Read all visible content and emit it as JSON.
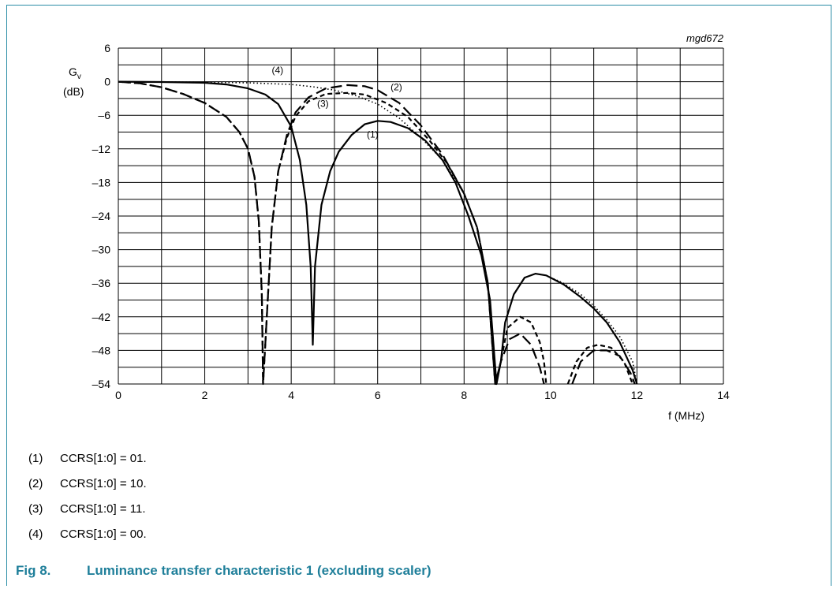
{
  "chart_data": {
    "type": "line",
    "id_label": "mgd672",
    "ylabel_main": "G",
    "ylabel_sub": "v",
    "ylabel_unit": "(dB)",
    "xlabel": "f (MHz)",
    "xlim": [
      0,
      14
    ],
    "ylim": [
      -54,
      6
    ],
    "x_ticks": [
      0,
      2,
      4,
      6,
      8,
      10,
      12,
      14
    ],
    "y_ticks": [
      6,
      0,
      -6,
      -12,
      -18,
      -24,
      -30,
      -36,
      -42,
      -48,
      -54
    ],
    "y_tick_labels": [
      "6",
      "0",
      "–6",
      "–12",
      "–18",
      "–24",
      "–30",
      "–36",
      "–42",
      "–48",
      "–54"
    ],
    "grid": true,
    "series": [
      {
        "name": "(1)",
        "style": "solid",
        "label_at": [
          5.75,
          -10
        ],
        "points": [
          [
            0,
            0
          ],
          [
            1,
            -0.05
          ],
          [
            2,
            -0.2
          ],
          [
            2.5,
            -0.5
          ],
          [
            3,
            -1.2
          ],
          [
            3.4,
            -2.3
          ],
          [
            3.7,
            -4
          ],
          [
            4,
            -8
          ],
          [
            4.2,
            -14
          ],
          [
            4.35,
            -22
          ],
          [
            4.45,
            -33
          ],
          [
            4.5,
            -47
          ],
          [
            4.55,
            -33
          ],
          [
            4.7,
            -22
          ],
          [
            4.9,
            -16
          ],
          [
            5.1,
            -12.5
          ],
          [
            5.4,
            -9.5
          ],
          [
            5.7,
            -7.6
          ],
          [
            6,
            -7
          ],
          [
            6.3,
            -7.2
          ],
          [
            6.7,
            -8.3
          ],
          [
            7.1,
            -10.5
          ],
          [
            7.5,
            -14
          ],
          [
            7.8,
            -18
          ],
          [
            8.1,
            -24
          ],
          [
            8.4,
            -31
          ],
          [
            8.6,
            -39
          ],
          [
            8.75,
            -54
          ],
          [
            8.85,
            -50
          ],
          [
            8.95,
            -43
          ],
          [
            9.15,
            -38
          ],
          [
            9.4,
            -35
          ],
          [
            9.65,
            -34.3
          ],
          [
            9.9,
            -34.6
          ],
          [
            10.3,
            -36.2
          ],
          [
            10.7,
            -38.5
          ],
          [
            11,
            -40.5
          ],
          [
            11.3,
            -43
          ],
          [
            11.6,
            -46.5
          ],
          [
            11.9,
            -51.5
          ],
          [
            12,
            -54
          ]
        ]
      },
      {
        "name": "(2)",
        "style": "longdash",
        "label_at": [
          6.3,
          -1.5
        ],
        "points": [
          [
            0,
            0
          ],
          [
            0.5,
            -0.3
          ],
          [
            1,
            -1
          ],
          [
            1.5,
            -2.2
          ],
          [
            2,
            -3.8
          ],
          [
            2.5,
            -6.3
          ],
          [
            2.8,
            -9
          ],
          [
            3,
            -12
          ],
          [
            3.15,
            -17
          ],
          [
            3.25,
            -25
          ],
          [
            3.32,
            -38
          ],
          [
            3.35,
            -54
          ],
          [
            3.45,
            -40
          ],
          [
            3.55,
            -26
          ],
          [
            3.7,
            -16
          ],
          [
            3.9,
            -9.5
          ],
          [
            4.1,
            -5.5
          ],
          [
            4.4,
            -2.8
          ],
          [
            4.8,
            -1.2
          ],
          [
            5.3,
            -0.6
          ],
          [
            5.7,
            -0.8
          ],
          [
            6,
            -1.5
          ],
          [
            6.5,
            -3.8
          ],
          [
            7,
            -7.8
          ],
          [
            7.5,
            -13
          ],
          [
            8,
            -20
          ],
          [
            8.3,
            -26
          ],
          [
            8.55,
            -36
          ],
          [
            8.72,
            -54
          ],
          [
            8.85,
            -50
          ],
          [
            9.05,
            -46
          ],
          [
            9.3,
            -45
          ],
          [
            9.55,
            -47
          ],
          [
            9.75,
            -51
          ],
          [
            9.85,
            -54
          ]
        ]
      },
      {
        "name": "(2)b",
        "style": "longdash",
        "points": [
          [
            10.5,
            -54
          ],
          [
            10.7,
            -50
          ],
          [
            11,
            -48
          ],
          [
            11.3,
            -48
          ],
          [
            11.6,
            -49
          ],
          [
            11.85,
            -52
          ],
          [
            11.95,
            -54
          ]
        ]
      },
      {
        "name": "(3)",
        "style": "shortdash",
        "label_at": [
          4.6,
          -4.5
        ],
        "points": [
          [
            0,
            0
          ],
          [
            0.5,
            -0.3
          ],
          [
            1,
            -1
          ],
          [
            1.5,
            -2.2
          ],
          [
            2,
            -3.8
          ],
          [
            2.5,
            -6.3
          ],
          [
            2.8,
            -9
          ],
          [
            3,
            -12
          ],
          [
            3.15,
            -17
          ],
          [
            3.25,
            -25
          ],
          [
            3.32,
            -38
          ],
          [
            3.35,
            -54
          ],
          [
            3.45,
            -40
          ],
          [
            3.55,
            -26
          ],
          [
            3.7,
            -16
          ],
          [
            3.9,
            -10
          ],
          [
            4.1,
            -6.2
          ],
          [
            4.4,
            -3.5
          ],
          [
            4.8,
            -2.2
          ],
          [
            5.3,
            -2
          ],
          [
            5.7,
            -2.3
          ],
          [
            6.2,
            -3.8
          ],
          [
            6.7,
            -6.3
          ],
          [
            7.2,
            -10.5
          ],
          [
            7.6,
            -14.5
          ],
          [
            8,
            -20
          ],
          [
            8.3,
            -26
          ],
          [
            8.55,
            -36
          ],
          [
            8.72,
            -54
          ],
          [
            8.85,
            -50
          ],
          [
            9,
            -44
          ],
          [
            9.3,
            -42
          ],
          [
            9.55,
            -43
          ],
          [
            9.75,
            -46.5
          ],
          [
            9.85,
            -50
          ],
          [
            9.9,
            -54
          ]
        ]
      },
      {
        "name": "(3)b",
        "style": "shortdash",
        "points": [
          [
            10.4,
            -54
          ],
          [
            10.6,
            -50
          ],
          [
            10.85,
            -47.5
          ],
          [
            11.1,
            -47
          ],
          [
            11.4,
            -47.5
          ],
          [
            11.7,
            -50
          ],
          [
            11.9,
            -54
          ]
        ]
      },
      {
        "name": "(4)",
        "style": "dotted",
        "label_at": [
          3.55,
          1.5
        ],
        "points": [
          [
            0,
            0
          ],
          [
            1,
            -0.05
          ],
          [
            2,
            -0.1
          ],
          [
            3,
            -0.2
          ],
          [
            4,
            -0.5
          ],
          [
            4.5,
            -0.9
          ],
          [
            5,
            -1.5
          ],
          [
            5.5,
            -2.5
          ],
          [
            6,
            -4
          ],
          [
            6.5,
            -6.5
          ],
          [
            7,
            -10
          ],
          [
            7.5,
            -14
          ],
          [
            8,
            -20
          ],
          [
            8.3,
            -26
          ],
          [
            8.55,
            -36
          ],
          [
            8.75,
            -54
          ],
          [
            8.85,
            -50
          ],
          [
            8.95,
            -43
          ],
          [
            9.15,
            -38
          ],
          [
            9.4,
            -35
          ],
          [
            9.65,
            -34.3
          ],
          [
            9.9,
            -34.6
          ],
          [
            10.3,
            -36
          ],
          [
            10.7,
            -38
          ],
          [
            11,
            -40
          ],
          [
            11.3,
            -42.5
          ],
          [
            11.6,
            -45.5
          ],
          [
            11.9,
            -50
          ],
          [
            12,
            -54
          ]
        ]
      }
    ]
  },
  "notes": [
    {
      "num": "(1)",
      "text": "CCRS[1:0] = 01."
    },
    {
      "num": "(2)",
      "text": "CCRS[1:0] = 10."
    },
    {
      "num": "(3)",
      "text": "CCRS[1:0] = 11."
    },
    {
      "num": "(4)",
      "text": "CCRS[1:0] = 00."
    }
  ],
  "caption": {
    "fig": "Fig 8.",
    "text": "Luminance transfer characteristic 1 (excluding scaler)"
  },
  "colors": {
    "frame": "#2b8da6",
    "caption": "#1f7f9a",
    "lines": "#000000",
    "grid": "#000000"
  }
}
